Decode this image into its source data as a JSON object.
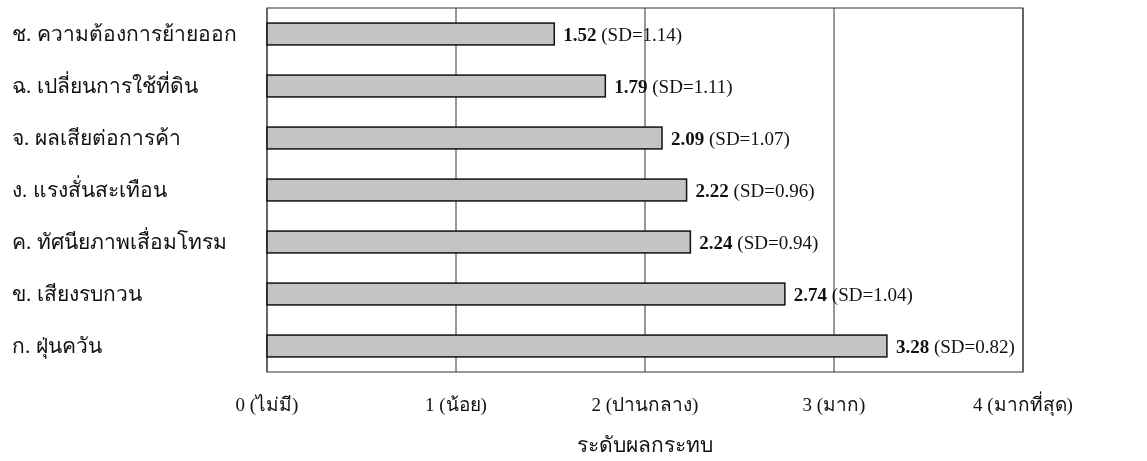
{
  "chart_data": {
    "type": "bar",
    "orientation": "horizontal",
    "categories": [
      "ช. ความต้องการย้ายออก",
      "ฉ. เปลี่ยนการใช้ที่ดิน",
      "จ. ผลเสียต่อการค้า",
      "ง. แรงสั่นสะเทือน",
      "ค. ทัศนียภาพเสื่อมโทรม",
      "ข. เสียงรบกวน",
      "ก. ฝุ่นควัน"
    ],
    "values": [
      1.52,
      1.79,
      2.09,
      2.22,
      2.24,
      2.74,
      3.28
    ],
    "value_labels": [
      "1.52 (SD=1.14)",
      "1.79 (SD=1.11)",
      "2.09 (SD=1.07)",
      "2.22 (SD=0.96)",
      "2.24 (SD=0.94)",
      "2.74 (SD=1.04)",
      "3.28 (SD=0.82)"
    ],
    "color": "#c4c4c4",
    "xlabel": "ระดับผลกระทบ",
    "xlim": [
      0,
      4
    ],
    "xticks": [
      {
        "value": 0,
        "label": "0 (ไม่มี)"
      },
      {
        "value": 1,
        "label": "1 (น้อย)"
      },
      {
        "value": 2,
        "label": "2 (ปานกลาง)"
      },
      {
        "value": 3,
        "label": "3 (มาก)"
      },
      {
        "value": 4,
        "label": "4 (มากที่สุด)"
      }
    ],
    "grid": "x"
  }
}
